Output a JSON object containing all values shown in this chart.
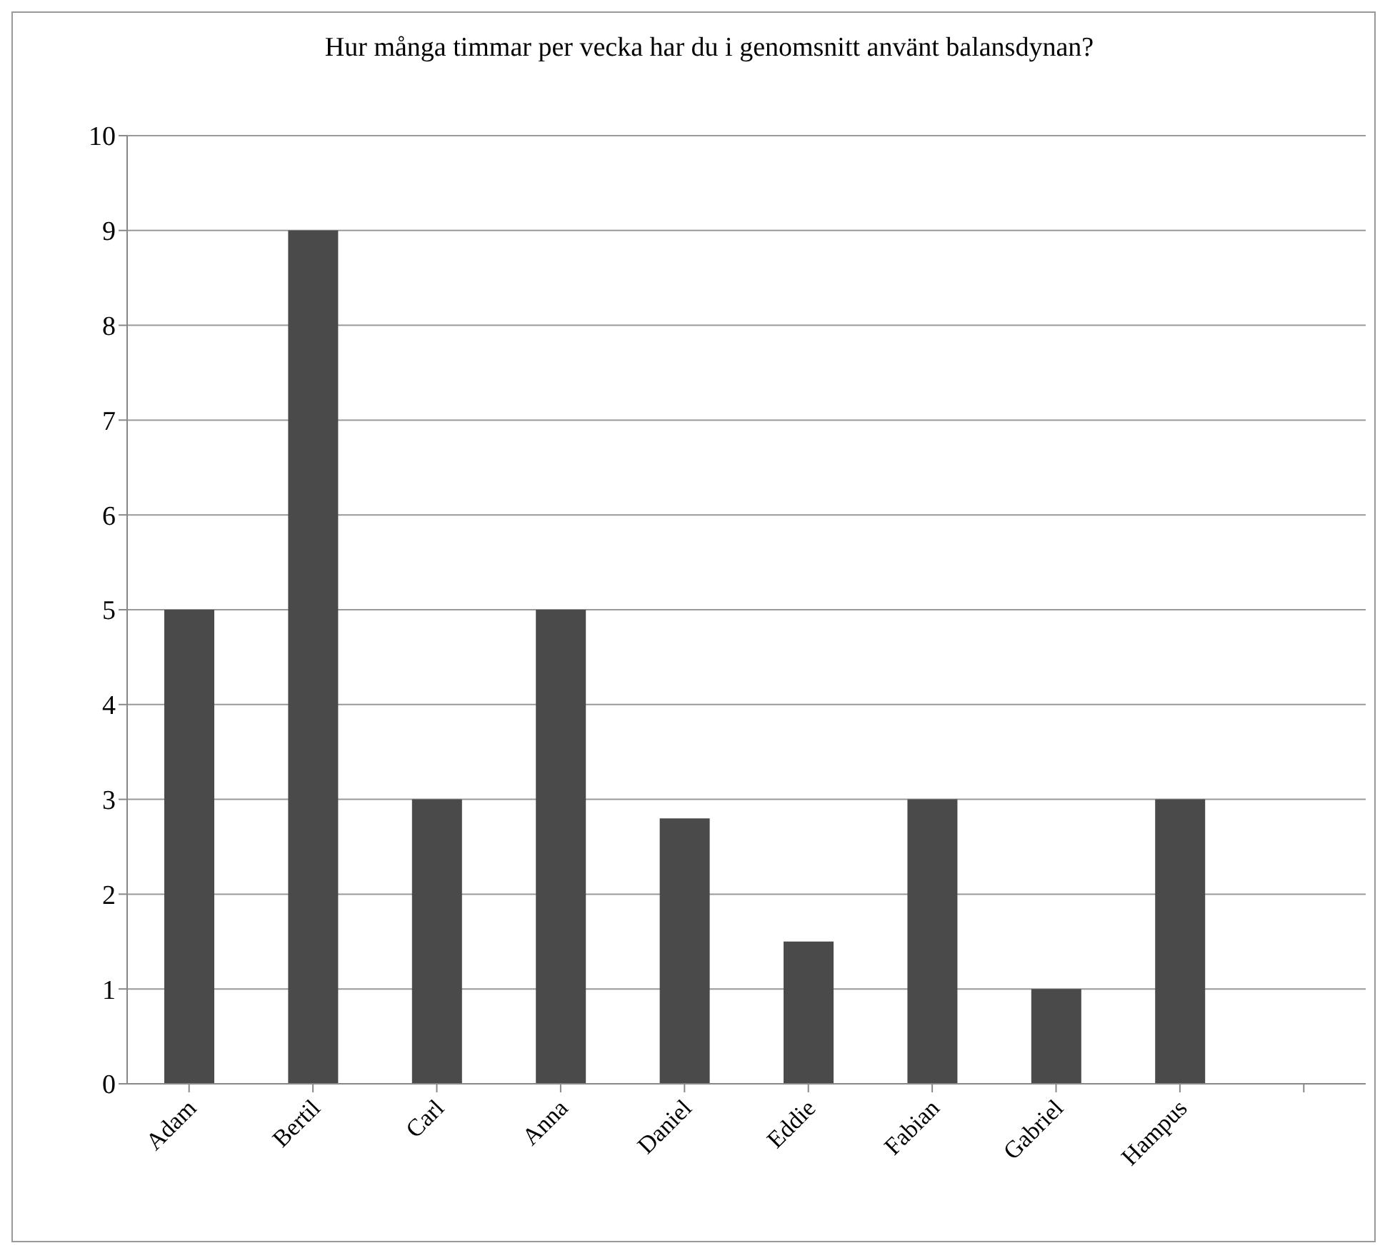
{
  "chart_data": {
    "type": "bar",
    "title": "Hur många timmar per vecka har du i genomsnitt använt balansdynan?",
    "categories": [
      "Adam",
      "Bertil",
      "Carl",
      "Anna",
      "Daniel",
      "Eddie",
      "Fabian",
      "Gabriel",
      "Hampus",
      null
    ],
    "values": [
      5,
      9,
      3,
      5,
      2.8,
      1.5,
      3,
      1,
      3,
      null
    ],
    "color": "#4a4a4a",
    "ylim": [
      0,
      10
    ],
    "yticks": [
      0,
      1,
      2,
      3,
      4,
      5,
      6,
      7,
      8,
      9,
      10
    ],
    "grid": "y",
    "legend": false
  }
}
